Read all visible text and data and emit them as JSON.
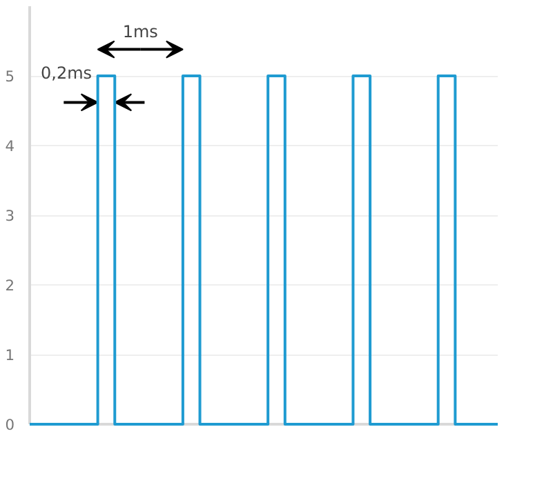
{
  "chart_data": {
    "type": "step",
    "categories": [
      null,
      null,
      null,
      null,
      null,
      null,
      null,
      null,
      null,
      null,
      null,
      null,
      null,
      null,
      null,
      null,
      null,
      null,
      null,
      null,
      null,
      null,
      null,
      null,
      null,
      null,
      null,
      null,
      null,
      null,
      null,
      null,
      null,
      null,
      null,
      null,
      null,
      null,
      null,
      null,
      null,
      null,
      null,
      null,
      null,
      null,
      null,
      null,
      null,
      null,
      null,
      null,
      null,
      null,
      null,
      null
    ],
    "series": [
      {
        "color": "#1f9bd1",
        "values": [
          0,
          0,
          0,
          0,
          0,
          0,
          0,
          0,
          5,
          5,
          0,
          0,
          0,
          0,
          0,
          0,
          0,
          0,
          5,
          5,
          0,
          0,
          0,
          0,
          0,
          0,
          0,
          0,
          5,
          5,
          0,
          0,
          0,
          0,
          0,
          0,
          0,
          0,
          5,
          5,
          0,
          0,
          0,
          0,
          0,
          0,
          0,
          0,
          5,
          5,
          0,
          0,
          0,
          0,
          0,
          0
        ]
      }
    ],
    "ylim": [
      0,
      6
    ],
    "yticks": [
      0,
      1,
      2,
      3,
      4,
      5
    ],
    "grid": "y",
    "tick_labels": "y",
    "annotations": [
      "1ms",
      "0,2ms"
    ]
  }
}
